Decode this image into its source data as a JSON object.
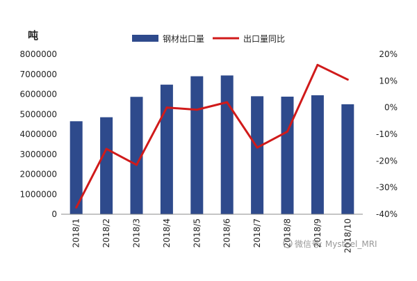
{
  "chart_data": {
    "type": "bar",
    "title": "",
    "y_unit_label": "吨",
    "categories": [
      "2018/1",
      "2018/2",
      "2018/3",
      "2018/4",
      "2018/5",
      "2018/6",
      "2018/7",
      "2018/8",
      "2018/9",
      "2018/10"
    ],
    "series": [
      {
        "name": "钢材出口量",
        "type": "bar",
        "axis": "left",
        "values": [
          4650000,
          4850000,
          5870000,
          6480000,
          6900000,
          6940000,
          5900000,
          5880000,
          5950000,
          5500000
        ]
      },
      {
        "name": "出口量同比",
        "type": "line",
        "axis": "right",
        "values": [
          -37.5,
          -15.5,
          -21.5,
          0,
          -0.8,
          2,
          -15,
          -9,
          16,
          10.5
        ]
      }
    ],
    "ylim_left": [
      0,
      8000000
    ],
    "yticks_left": [
      0,
      1000000,
      2000000,
      3000000,
      4000000,
      5000000,
      6000000,
      7000000,
      8000000
    ],
    "ylim_right": [
      -40,
      20
    ],
    "yticks_right": [
      -40,
      -30,
      -20,
      -10,
      0,
      10,
      20
    ],
    "ytick_labels_right": [
      "-40%",
      "-30%",
      "-20%",
      "-10%",
      "0%",
      "10%",
      "20%"
    ],
    "grid": false,
    "legend_position": "top",
    "colors": {
      "bar": "#2E4A8C",
      "line": "#D01A1A"
    }
  },
  "watermark": "微信号: Mysteel_MRI"
}
